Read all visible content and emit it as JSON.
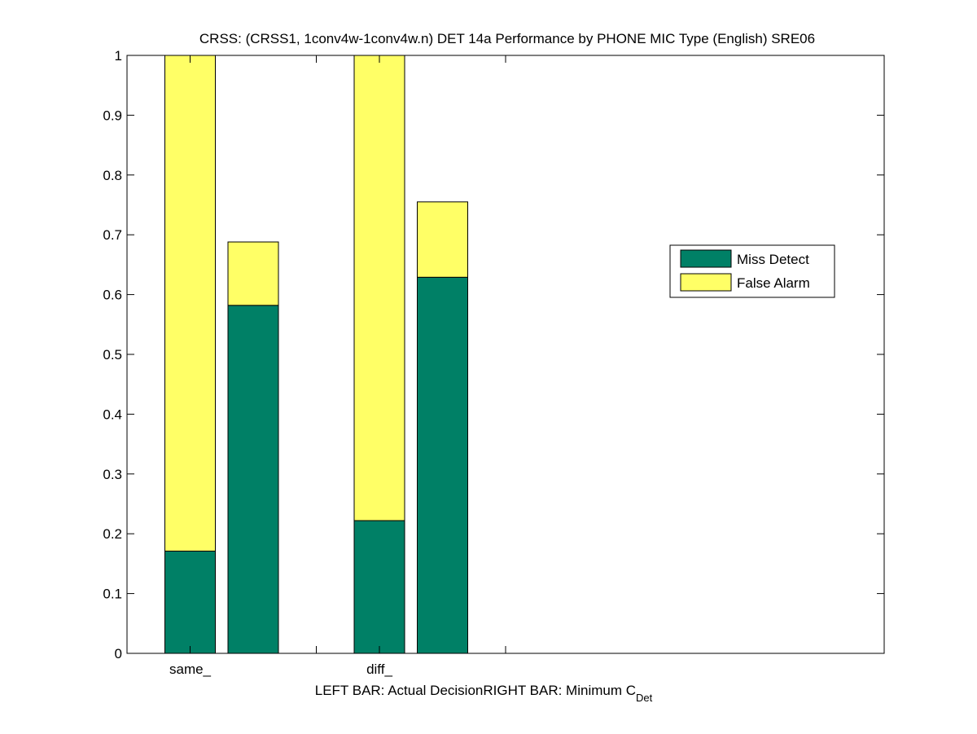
{
  "chart_data": {
    "type": "bar",
    "title": "CRSS: (CRSS1, 1conv4w-1conv4w.n) DET 14a Performance by PHONE MIC Type (English) SRE06",
    "xlabel": {
      "left_text": "LEFT BAR: Actual Decision",
      "right_text": "RIGHT BAR: Minimum C",
      "right_subscript": "Det"
    },
    "ylabel": "",
    "ylim": [
      0,
      1
    ],
    "yticks": [
      "0",
      "0.1",
      "0.2",
      "0.3",
      "0.4",
      "0.5",
      "0.6",
      "0.7",
      "0.8",
      "0.9",
      "1"
    ],
    "xlim": [
      0,
      12
    ],
    "categories": [
      "same_",
      "diff_"
    ],
    "category_ticks_x": [
      1,
      4
    ],
    "extra_ticks_x": [
      3,
      6
    ],
    "bars": [
      {
        "category": "same_",
        "x": 1,
        "decision": "Actual Decision",
        "miss_detect": 0.171,
        "false_alarm": 0.829
      },
      {
        "category": "same_",
        "x": 2,
        "decision": "Minimum C_Det",
        "miss_detect": 0.582,
        "false_alarm": 0.106
      },
      {
        "category": "diff_",
        "x": 4,
        "decision": "Actual Decision",
        "miss_detect": 0.222,
        "false_alarm": 0.778
      },
      {
        "category": "diff_",
        "x": 5,
        "decision": "Minimum C_Det",
        "miss_detect": 0.629,
        "false_alarm": 0.126
      }
    ],
    "series": [
      {
        "name": "Miss Detect",
        "color": "#008066"
      },
      {
        "name": "False Alarm",
        "color": "#ffff66"
      }
    ],
    "legend": {
      "placement": "right",
      "entries": [
        "Miss Detect",
        "False Alarm"
      ]
    },
    "grid": false
  }
}
